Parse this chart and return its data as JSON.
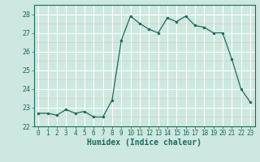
{
  "x": [
    0,
    1,
    2,
    3,
    4,
    5,
    6,
    7,
    8,
    9,
    10,
    11,
    12,
    13,
    14,
    15,
    16,
    17,
    18,
    19,
    20,
    21,
    22,
    23
  ],
  "y": [
    22.7,
    22.7,
    22.6,
    22.9,
    22.7,
    22.8,
    22.5,
    22.5,
    23.4,
    26.6,
    27.9,
    27.5,
    27.2,
    27.0,
    27.8,
    27.6,
    27.9,
    27.4,
    27.3,
    27.0,
    27.0,
    25.6,
    24.0,
    23.3
  ],
  "line_color": "#1a6b5a",
  "marker": "o",
  "marker_size": 2.0,
  "bg_color": "#cce8e0",
  "grid_major_color": "#ffffff",
  "grid_minor_color": "#e8c8c8",
  "xlabel": "Humidex (Indice chaleur)",
  "ylim": [
    22,
    28.5
  ],
  "xlim": [
    -0.5,
    23.5
  ],
  "yticks": [
    22,
    23,
    24,
    25,
    26,
    27,
    28
  ],
  "xticks": [
    0,
    1,
    2,
    3,
    4,
    5,
    6,
    7,
    8,
    9,
    10,
    11,
    12,
    13,
    14,
    15,
    16,
    17,
    18,
    19,
    20,
    21,
    22,
    23
  ],
  "tick_color": "#1a6b5a",
  "label_color": "#1a6b5a"
}
